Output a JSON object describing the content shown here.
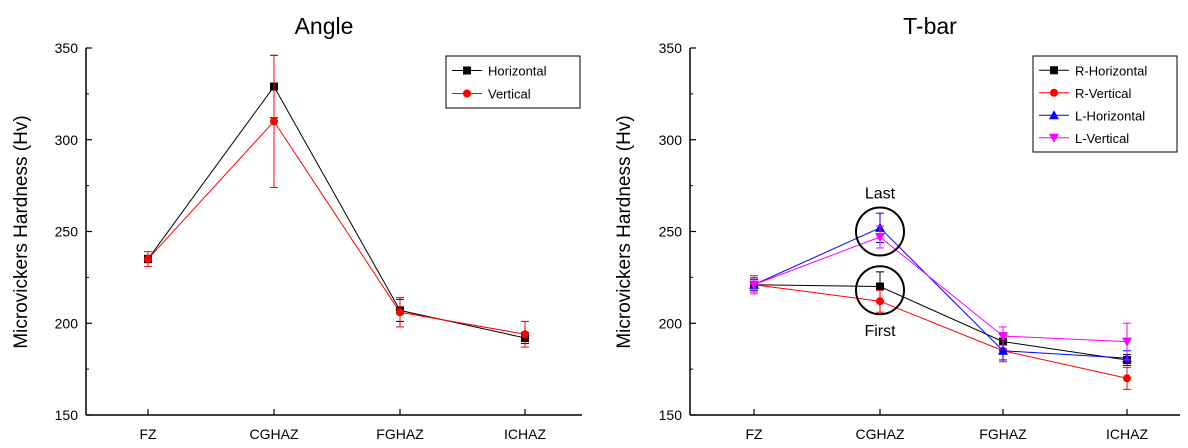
{
  "chart_data": [
    {
      "type": "line",
      "title": "Angle",
      "xlabel": "",
      "ylabel": "Microvickers Hardness (Hv)",
      "categories": [
        "FZ",
        "CGHAZ",
        "FGHAZ",
        "ICHAZ"
      ],
      "ylim": [
        150,
        350
      ],
      "yticks": [
        150,
        200,
        250,
        300,
        350
      ],
      "legend_position": "top-right",
      "grid": false,
      "series": [
        {
          "name": "Horizontal",
          "color": "#000000",
          "marker": "square",
          "values": [
            235,
            329,
            207,
            192
          ],
          "errors": [
            2,
            17,
            6,
            3
          ]
        },
        {
          "name": "Vertical",
          "color": "#ff0000",
          "marker": "circle",
          "values": [
            235,
            310,
            206,
            194
          ],
          "errors": [
            4,
            36,
            8,
            7
          ]
        }
      ],
      "annotations": []
    },
    {
      "type": "line",
      "title": "T-bar",
      "xlabel": "",
      "ylabel": "Microvickers Hardness (Hv)",
      "categories": [
        "FZ",
        "CGHAZ",
        "FGHAZ",
        "ICHAZ"
      ],
      "ylim": [
        150,
        350
      ],
      "yticks": [
        150,
        200,
        250,
        300,
        350
      ],
      "legend_position": "top-right",
      "grid": false,
      "series": [
        {
          "name": "R-Horizontal",
          "color": "#000000",
          "marker": "square",
          "values": [
            221,
            220,
            190,
            180
          ],
          "errors": [
            3,
            8,
            4,
            3
          ]
        },
        {
          "name": "R-Vertical",
          "color": "#ff0000",
          "marker": "circle",
          "values": [
            221,
            212,
            185,
            170
          ],
          "errors": [
            4,
            6,
            6,
            6
          ]
        },
        {
          "name": "L-Horizontal",
          "color": "#0000ff",
          "marker": "triangle-up",
          "values": [
            221,
            252,
            185,
            181
          ],
          "errors": [
            3,
            8,
            5,
            4
          ]
        },
        {
          "name": "L-Vertical",
          "color": "#ff00ff",
          "marker": "triangle-down",
          "values": [
            221,
            247,
            193,
            190
          ],
          "errors": [
            5,
            6,
            5,
            10
          ]
        }
      ],
      "annotations": [
        {
          "text": "Last",
          "category": "CGHAZ",
          "value": 250,
          "label_position": "above"
        },
        {
          "text": "First",
          "category": "CGHAZ",
          "value": 218,
          "label_position": "below"
        }
      ]
    }
  ]
}
